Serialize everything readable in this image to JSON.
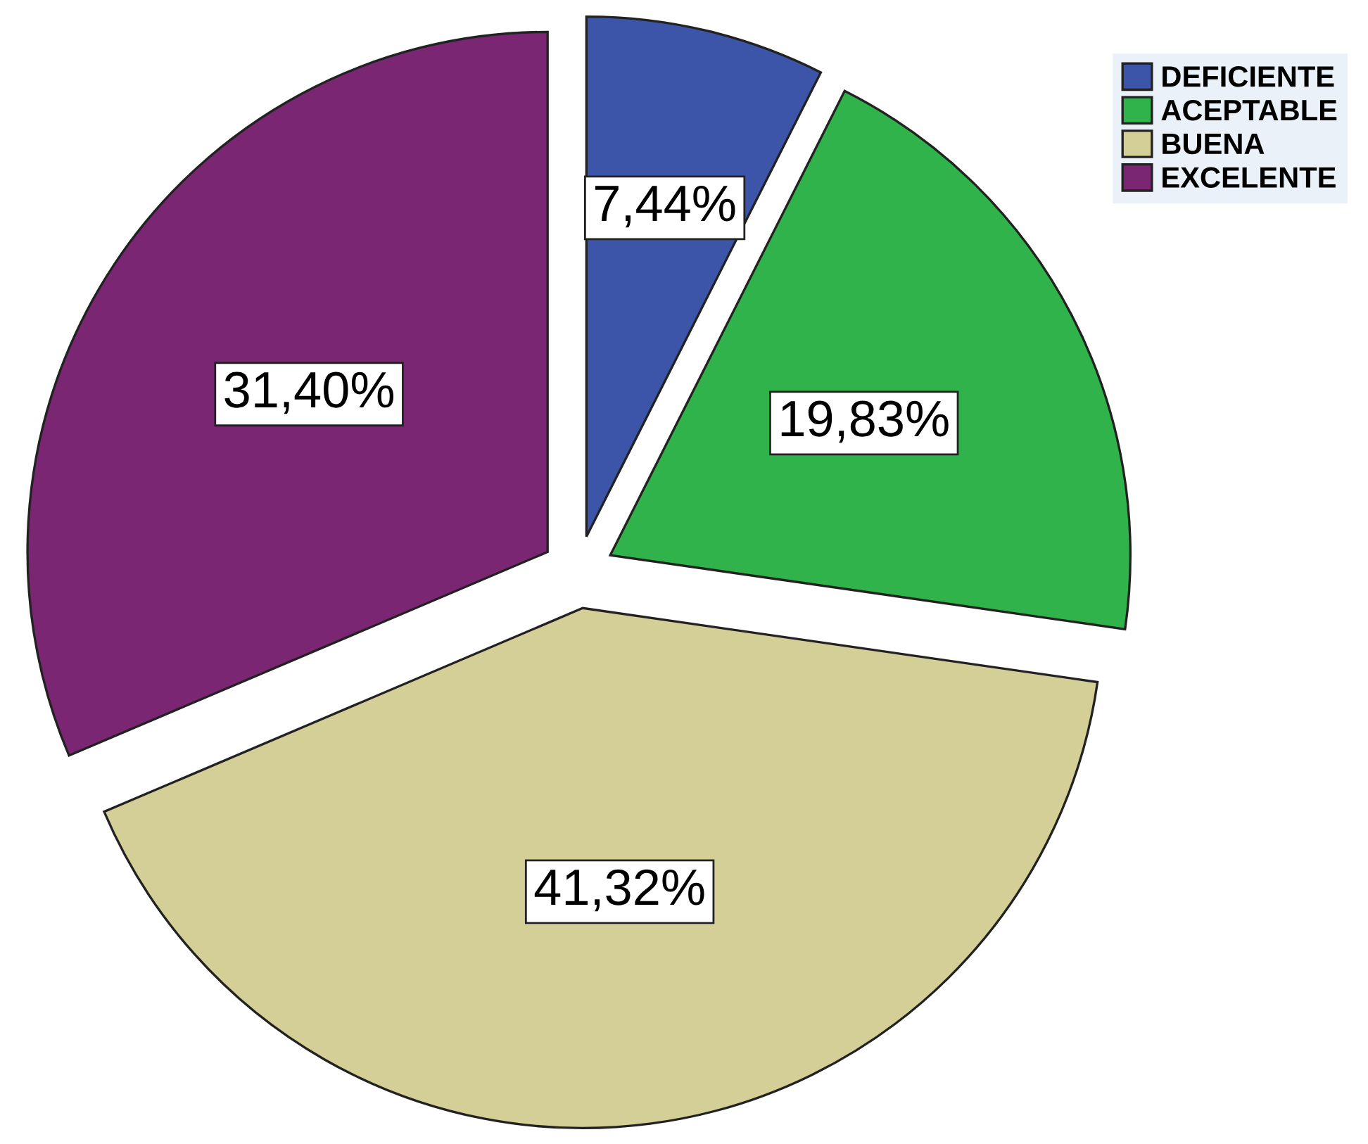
{
  "chart_data": {
    "type": "pie",
    "categories": [
      "DEFICIENTE",
      "ACEPTABLE",
      "BUENA",
      "EXCELENTE"
    ],
    "values": [
      7.44,
      19.83,
      41.32,
      31.4
    ],
    "value_labels": [
      "7,44%",
      "19,83%",
      "41,32%",
      "31,40%"
    ],
    "colors": [
      "#3c55a8",
      "#30b34a",
      "#d4cf96",
      "#7a2673"
    ],
    "legend": "top right"
  }
}
